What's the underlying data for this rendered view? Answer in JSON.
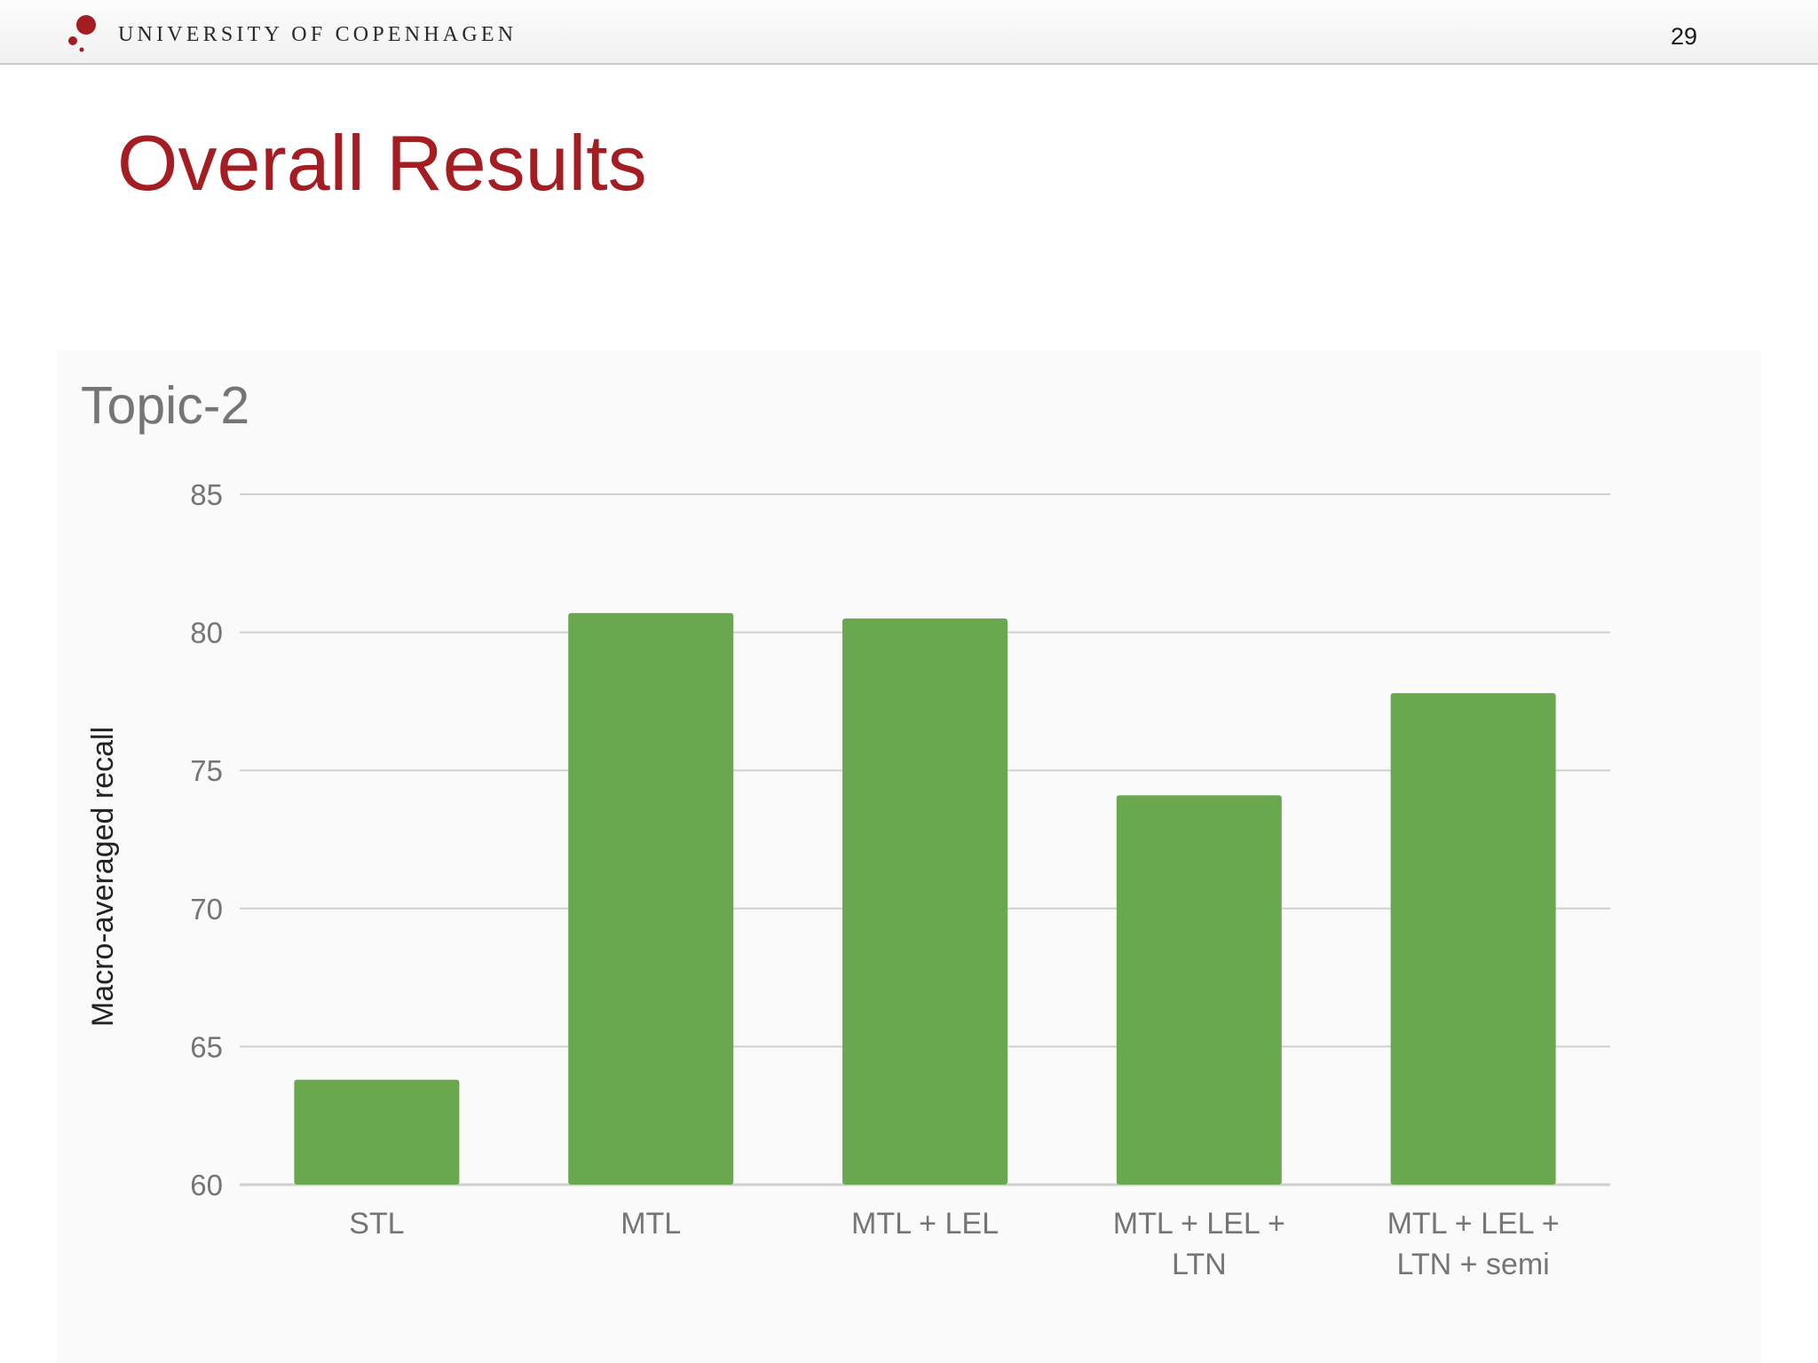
{
  "header": {
    "university": "UNIVERSITY OF COPENHAGEN",
    "page_number": "29",
    "logo_icon": "university-logo-icon"
  },
  "slide": {
    "title": "Overall Results"
  },
  "colors": {
    "title_red": "#a31d23",
    "bar_green": "#6aa84f",
    "grid_gray": "#d0d0d0",
    "axis_text": "#757575"
  },
  "chart_data": {
    "type": "bar",
    "title": "Topic-2",
    "ylabel": "Macro-averaged recall",
    "xlabel": "",
    "ylim": [
      60,
      85
    ],
    "yticks": [
      85,
      80,
      75,
      70,
      65,
      60
    ],
    "grid": true,
    "legend": "none",
    "categories": [
      [
        "STL"
      ],
      [
        "MTL"
      ],
      [
        "MTL + LEL"
      ],
      [
        "MTL + LEL +",
        "LTN"
      ],
      [
        "MTL + LEL +",
        "LTN + semi"
      ]
    ],
    "values": [
      63.8,
      80.7,
      80.5,
      74.1,
      77.8
    ]
  }
}
